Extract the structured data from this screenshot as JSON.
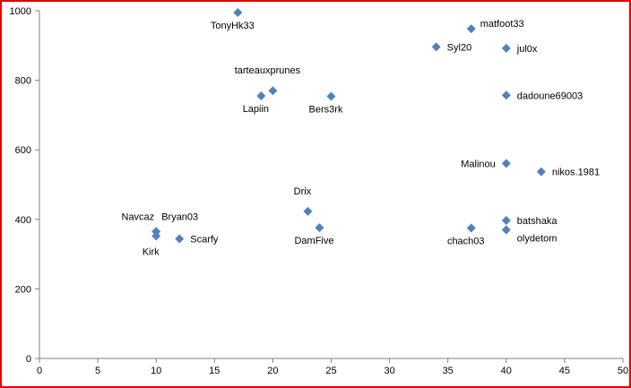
{
  "chart_data": {
    "type": "scatter",
    "title": "",
    "xlabel": "",
    "ylabel": "",
    "xlim": [
      0,
      50
    ],
    "ylim": [
      0,
      1000
    ],
    "x_ticks": [
      0,
      5,
      10,
      15,
      20,
      25,
      30,
      35,
      40,
      45,
      50
    ],
    "y_ticks": [
      0,
      200,
      400,
      600,
      800,
      1000
    ],
    "grid": false,
    "legend": "none",
    "marker": "diamond",
    "colors": {
      "marker": "#4f81bd",
      "frame": "#e60000",
      "axis": "#808080"
    },
    "points": [
      {
        "label": "TonyHk33",
        "x": 17,
        "y": 995,
        "label_pos": "below"
      },
      {
        "label": "matfoot33",
        "x": 37,
        "y": 948,
        "label_pos": "right-up"
      },
      {
        "label": "Syl20",
        "x": 34,
        "y": 896,
        "label_pos": "right"
      },
      {
        "label": "jul0x",
        "x": 40,
        "y": 892,
        "label_pos": "right"
      },
      {
        "label": "tarteauxprunes",
        "x": 20,
        "y": 770,
        "label_pos": "above"
      },
      {
        "label": "Lapiin",
        "x": 19,
        "y": 755,
        "label_pos": "below"
      },
      {
        "label": "Bers3rk",
        "x": 25,
        "y": 754,
        "label_pos": "below"
      },
      {
        "label": "dadoune69003",
        "x": 40,
        "y": 757,
        "label_pos": "right"
      },
      {
        "label": "Malinou",
        "x": 40,
        "y": 561,
        "label_pos": "left"
      },
      {
        "label": "nikos.1981",
        "x": 43,
        "y": 537,
        "label_pos": "right"
      },
      {
        "label": "Drix",
        "x": 23,
        "y": 423,
        "label_pos": "above"
      },
      {
        "label": "DamFive",
        "x": 24,
        "y": 376,
        "label_pos": "below"
      },
      {
        "label": "Navcaz",
        "x": 10,
        "y": 365,
        "label_pos": "left-up"
      },
      {
        "label": "Bryan03",
        "x": 10,
        "y": 365,
        "label_pos": "right-up"
      },
      {
        "label": "Kirk",
        "x": 10,
        "y": 352,
        "label_pos": "below-left"
      },
      {
        "label": "Scarfy",
        "x": 12,
        "y": 344,
        "label_pos": "right"
      },
      {
        "label": "chach03",
        "x": 37,
        "y": 375,
        "label_pos": "below"
      },
      {
        "label": "batshaka",
        "x": 40,
        "y": 397,
        "label_pos": "right"
      },
      {
        "label": "olydetom",
        "x": 40,
        "y": 370,
        "label_pos": "right-down"
      }
    ]
  }
}
